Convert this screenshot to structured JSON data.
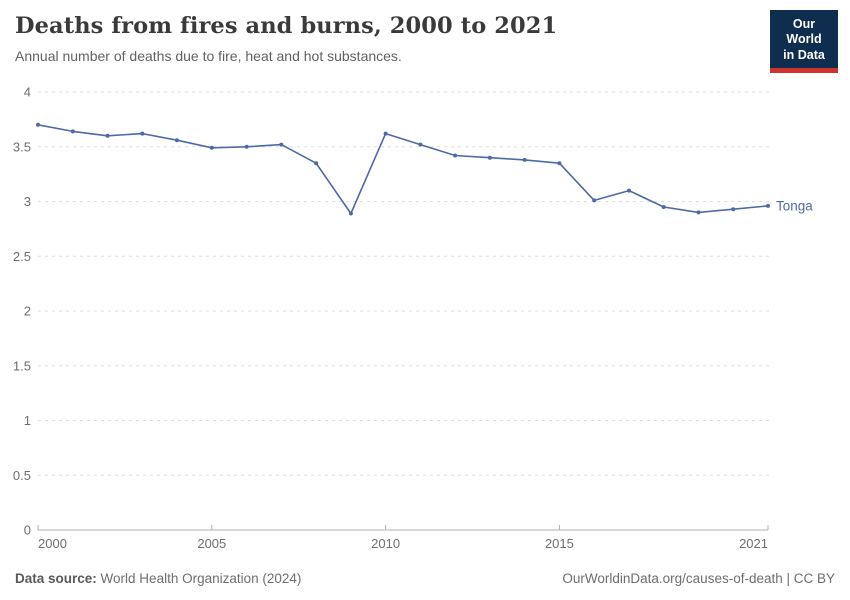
{
  "header": {
    "title": "Deaths from fires and burns, 2000 to 2021",
    "subtitle": "Annual number of deaths due to fire, heat and hot substances."
  },
  "logo": {
    "line1": "Our World",
    "line2": "in Data"
  },
  "footer": {
    "source_label": "Data source:",
    "source_value": "World Health Organization (2024)",
    "rights": "OurWorldinData.org/causes-of-death | CC BY"
  },
  "colors": {
    "line": "#4C6BA5",
    "logo_bg": "#0F2D4E",
    "logo_accent": "#CE342B",
    "gridline": "#dedede",
    "axis": "#b0b0b0",
    "tick_label": "#6e6e6e"
  },
  "chart_data": {
    "type": "line",
    "title": "Deaths from fires and burns, 2000 to 2021",
    "subtitle": "Annual number of deaths due to fire, heat and hot substances.",
    "xlabel": "",
    "ylabel": "",
    "xlim": [
      2000,
      2021
    ],
    "ylim": [
      0,
      4
    ],
    "x_ticks": [
      2000,
      2005,
      2010,
      2015,
      2021
    ],
    "y_ticks": [
      0,
      0.5,
      1,
      1.5,
      2,
      2.5,
      3,
      3.5,
      4
    ],
    "grid": "horizontal-dashed",
    "legend_position": "end-of-line-label",
    "x": [
      2000,
      2001,
      2002,
      2003,
      2004,
      2005,
      2006,
      2007,
      2008,
      2009,
      2010,
      2011,
      2012,
      2013,
      2014,
      2015,
      2016,
      2017,
      2018,
      2019,
      2020,
      2021
    ],
    "series": [
      {
        "name": "Tonga",
        "color": "#4C6BA5",
        "values": [
          3.7,
          3.64,
          3.6,
          3.62,
          3.56,
          3.49,
          3.5,
          3.52,
          3.35,
          2.89,
          3.62,
          3.52,
          3.42,
          3.4,
          3.38,
          3.35,
          3.01,
          3.1,
          2.95,
          2.9,
          2.93,
          2.96
        ]
      }
    ]
  }
}
